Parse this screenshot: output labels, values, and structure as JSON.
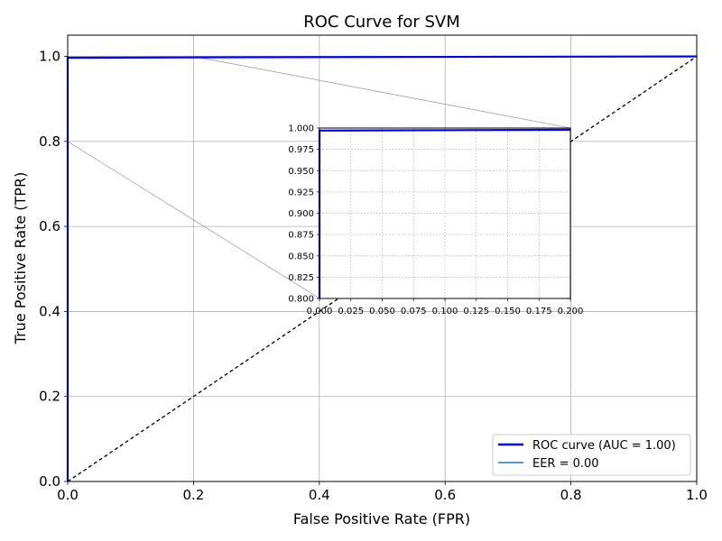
{
  "chart_data": [
    {
      "type": "line",
      "title": "ROC Curve for SVM",
      "xlabel": "False Positive Rate (FPR)",
      "ylabel": "True Positive Rate (TPR)",
      "xlim": [
        0,
        1
      ],
      "ylim": [
        0,
        1.05
      ],
      "xticks": [
        0,
        0.2,
        0.4,
        0.6,
        0.8,
        1.0
      ],
      "yticks": [
        0,
        0.2,
        0.4,
        0.6,
        0.8,
        1.0
      ],
      "xtick_labels": [
        "0.0",
        "0.2",
        "0.4",
        "0.6",
        "0.8",
        "1.0"
      ],
      "ytick_labels": [
        "0.0",
        "0.2",
        "0.4",
        "0.6",
        "0.8",
        "1.0"
      ],
      "grid": true,
      "legend_position": "bottom-right",
      "series": [
        {
          "name": "ROC curve (AUC = 1.00)",
          "color": "#0000ff",
          "style": "solid",
          "points": [
            [
              0,
              0
            ],
            [
              0,
              0.997
            ],
            [
              0.25,
              0.998
            ],
            [
              1.0,
              1.0
            ]
          ]
        },
        {
          "name": "EER = 0.00",
          "color": "#1f77b4",
          "style": "solid",
          "points": []
        },
        {
          "color": "#000000",
          "style": "dashed",
          "points": [
            [
              0,
              0
            ],
            [
              1,
              1
            ]
          ]
        }
      ]
    },
    {
      "type": "line",
      "inset": true,
      "xlim": [
        0,
        0.2
      ],
      "ylim": [
        0.8,
        1.0
      ],
      "xticks": [
        0,
        0.025,
        0.05,
        0.075,
        0.1,
        0.125,
        0.15,
        0.175,
        0.2
      ],
      "yticks": [
        0.8,
        0.825,
        0.85,
        0.875,
        0.9,
        0.925,
        0.95,
        0.975,
        1.0
      ],
      "xtick_labels": [
        "0.000",
        "0.025",
        "0.050",
        "0.075",
        "0.100",
        "0.125",
        "0.150",
        "0.175",
        "0.200"
      ],
      "ytick_labels": [
        "0.800",
        "0.825",
        "0.850",
        "0.875",
        "0.900",
        "0.925",
        "0.950",
        "0.975",
        "1.000"
      ],
      "grid": true,
      "grid_style": "dotted",
      "series": [
        {
          "color": "#0000ff",
          "style": "solid",
          "points": [
            [
              0,
              0.8
            ],
            [
              0,
              0.997
            ],
            [
              0.2,
              0.998
            ]
          ]
        }
      ]
    }
  ]
}
